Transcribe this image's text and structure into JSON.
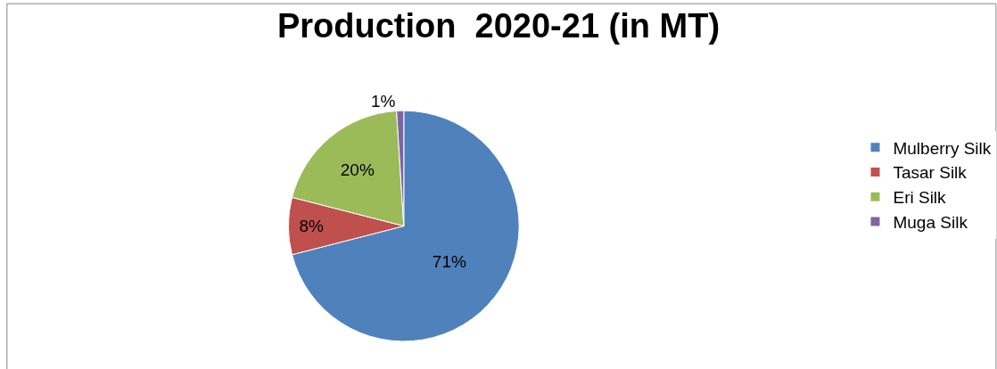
{
  "chart_data": {
    "type": "pie",
    "title": "Production  2020-21 (in MT)",
    "categories": [
      "Mulberry Silk",
      "Tasar Silk",
      "Eri Silk",
      "Muga Silk"
    ],
    "values": [
      71,
      8,
      20,
      1
    ],
    "colors": [
      "#4f81bd",
      "#c0504d",
      "#9bbb59",
      "#8064a2"
    ],
    "value_labels": [
      "71%",
      "8%",
      "20%",
      "1%"
    ],
    "legend": "right"
  }
}
